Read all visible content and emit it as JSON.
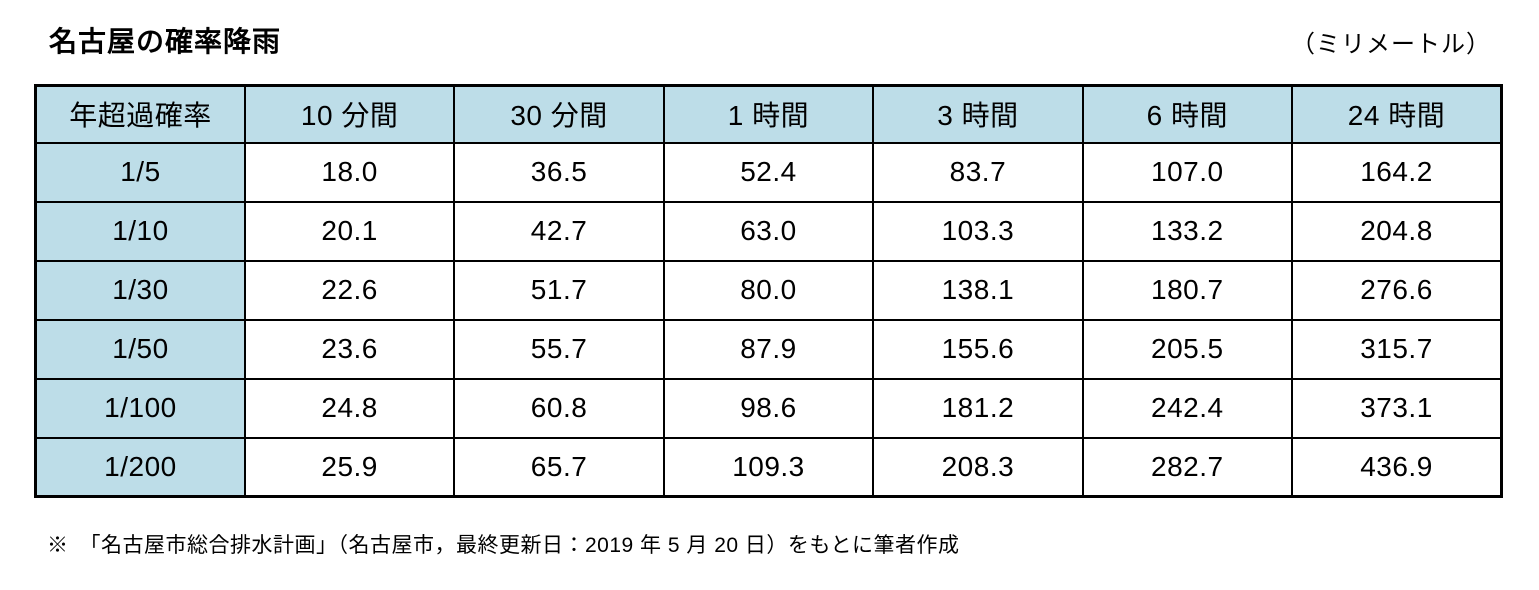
{
  "title": "名古屋の確率降雨",
  "unit_label": "（ミリメートル）",
  "table": {
    "corner_header": "年超過確率",
    "column_headers": [
      "10 分間",
      "30 分間",
      "1 時間",
      "3 時間",
      "6 時間",
      "24 時間"
    ],
    "rows": [
      {
        "label": "1/5",
        "values": [
          "18.0",
          "36.5",
          "52.4",
          "83.7",
          "107.0",
          "164.2"
        ]
      },
      {
        "label": "1/10",
        "values": [
          "20.1",
          "42.7",
          "63.0",
          "103.3",
          "133.2",
          "204.8"
        ]
      },
      {
        "label": "1/30",
        "values": [
          "22.6",
          "51.7",
          "80.0",
          "138.1",
          "180.7",
          "276.6"
        ]
      },
      {
        "label": "1/50",
        "values": [
          "23.6",
          "55.7",
          "87.9",
          "155.6",
          "205.5",
          "315.7"
        ]
      },
      {
        "label": "1/100",
        "values": [
          "24.8",
          "60.8",
          "98.6",
          "181.2",
          "242.4",
          "373.1"
        ]
      },
      {
        "label": "1/200",
        "values": [
          "25.9",
          "65.7",
          "109.3",
          "208.3",
          "282.7",
          "436.9"
        ]
      }
    ]
  },
  "footnote": "※　「名古屋市総合排水計画」（名古屋市，最終更新日：2019 年 5 月 20 日）をもとに筆者作成",
  "colors": {
    "header_bg": "#bddde8",
    "border": "#000000",
    "text": "#000000",
    "background": "#ffffff"
  },
  "chart_data": {
    "type": "table",
    "title": "名古屋の確率降雨",
    "unit": "ミリメートル",
    "columns": [
      "年超過確率",
      "10分間",
      "30分間",
      "1時間",
      "3時間",
      "6時間",
      "24時間"
    ],
    "rows": [
      [
        "1/5",
        18.0,
        36.5,
        52.4,
        83.7,
        107.0,
        164.2
      ],
      [
        "1/10",
        20.1,
        42.7,
        63.0,
        103.3,
        133.2,
        204.8
      ],
      [
        "1/30",
        22.6,
        51.7,
        80.0,
        138.1,
        180.7,
        276.6
      ],
      [
        "1/50",
        23.6,
        55.7,
        87.9,
        155.6,
        205.5,
        315.7
      ],
      [
        "1/100",
        24.8,
        60.8,
        98.6,
        181.2,
        242.4,
        373.1
      ],
      [
        "1/200",
        25.9,
        65.7,
        109.3,
        208.3,
        282.7,
        436.9
      ]
    ],
    "source_note": "「名古屋市総合排水計画」（名古屋市，最終更新日：2019年5月20日）をもとに筆者作成"
  }
}
